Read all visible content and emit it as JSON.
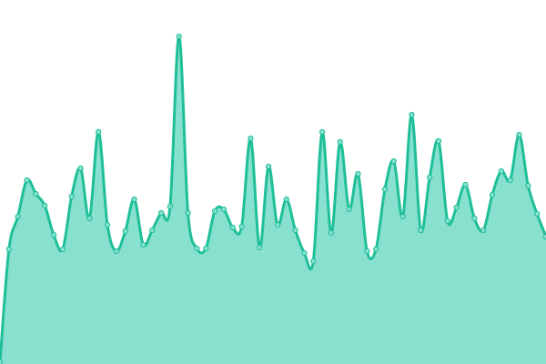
{
  "chart_data": {
    "type": "area",
    "values": [
      2,
      126,
      162,
      202,
      187,
      174,
      142,
      126,
      184,
      215,
      160,
      255,
      153,
      124,
      146,
      181,
      131,
      147,
      166,
      173,
      360,
      166,
      127,
      127,
      168,
      170,
      150,
      151,
      248,
      128,
      217,
      153,
      181,
      147,
      122,
      113,
      255,
      144,
      244,
      170,
      209,
      124,
      126,
      192,
      223,
      162,
      274,
      147,
      205,
      245,
      157,
      172,
      197,
      160,
      147,
      186,
      212,
      202,
      252,
      196,
      165,
      140
    ],
    "ylim": [
      0,
      400
    ],
    "line_color": "#1fbf98",
    "fill_color": "#88e0cf"
  }
}
